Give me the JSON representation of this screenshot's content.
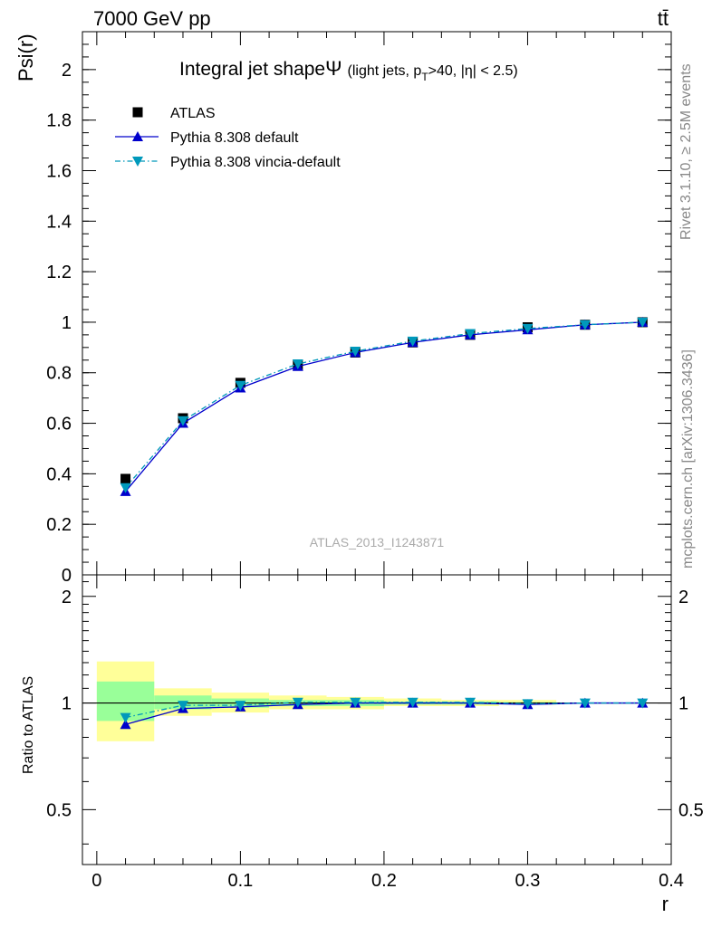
{
  "header": {
    "left": "7000 GeV pp",
    "right": "tt̄"
  },
  "side_text": {
    "upper": "Rivet 3.1.10, ≥ 2.5M events",
    "lower": "mcplots.cern.ch [arXiv:1306.3436]"
  },
  "watermark": "ATLAS_2013_I1243871",
  "chart_data": [
    {
      "type": "line",
      "title": "Integral jet shape",
      "title_symbol": "Ψ",
      "title_note": "(light jets, p",
      "title_note_sub": "T",
      "title_note_rest": ">40, |η| < 2.5)",
      "ylabel": "Psi(r)",
      "xlim": [
        -0.01,
        0.4
      ],
      "ylim": [
        0,
        2.15
      ],
      "yticks": [
        0,
        0.2,
        0.4,
        0.6,
        0.8,
        1,
        1.2,
        1.4,
        1.6,
        1.8,
        2
      ],
      "ytick_labels": [
        "0",
        "0.2",
        "0.4",
        "0.6",
        "0.8",
        "1",
        "1.2",
        "1.4",
        "1.6",
        "1.8",
        "2"
      ],
      "legend_position": "top-left",
      "x": [
        0.02,
        0.06,
        0.1,
        0.14,
        0.18,
        0.22,
        0.26,
        0.3,
        0.34,
        0.38
      ],
      "series": [
        {
          "name": "ATLAS",
          "color": "#000000",
          "marker": "square",
          "line": "none",
          "values": [
            0.38,
            0.62,
            0.76,
            0.83,
            0.88,
            0.92,
            0.95,
            0.98,
            0.99,
            1.0
          ]
        },
        {
          "name": "Pythia 8.308 default",
          "color": "#0000cc",
          "marker": "triangle-up",
          "line": "solid",
          "values": [
            0.33,
            0.6,
            0.74,
            0.825,
            0.88,
            0.92,
            0.95,
            0.97,
            0.99,
            1.0
          ]
        },
        {
          "name": "Pythia 8.308 vincia-default",
          "color": "#0099bb",
          "marker": "triangle-down",
          "line": "dashdot",
          "values": [
            0.345,
            0.61,
            0.75,
            0.835,
            0.885,
            0.925,
            0.955,
            0.975,
            0.99,
            1.0
          ]
        }
      ]
    },
    {
      "type": "line",
      "ylabel": "Ratio to ATLAS",
      "xlabel": "r",
      "xlim": [
        -0.01,
        0.4
      ],
      "ylim": [
        0.35,
        2.3
      ],
      "yticks": [
        0.5,
        1,
        2
      ],
      "ytick_labels": [
        "0.5",
        "1",
        "2"
      ],
      "xticks": [
        0,
        0.1,
        0.2,
        0.3,
        0.4
      ],
      "xtick_labels": [
        "0",
        "0.1",
        "0.2",
        "0.3",
        "0.4"
      ],
      "reference_line": 1.0,
      "bands": {
        "bin_edges": [
          0.0,
          0.04,
          0.08,
          0.12,
          0.16,
          0.2,
          0.24,
          0.28,
          0.32
        ],
        "outer_yellow": [
          [
            0.78,
            1.31
          ],
          [
            0.92,
            1.1
          ],
          [
            0.94,
            1.07
          ],
          [
            0.96,
            1.05
          ],
          [
            0.96,
            1.04
          ],
          [
            0.98,
            1.03
          ],
          [
            0.98,
            1.02
          ],
          [
            0.99,
            1.02
          ]
        ],
        "inner_green": [
          [
            0.89,
            1.15
          ],
          [
            0.96,
            1.05
          ],
          [
            0.97,
            1.03
          ],
          [
            0.98,
            1.02
          ],
          [
            0.98,
            1.02
          ],
          [
            0.99,
            1.01
          ],
          [
            0.99,
            1.01
          ],
          [
            0.995,
            1.005
          ]
        ],
        "colors": {
          "outer": "#ffff99",
          "inner": "#99ff99"
        }
      },
      "x": [
        0.02,
        0.06,
        0.1,
        0.14,
        0.18,
        0.22,
        0.26,
        0.3,
        0.34,
        0.38
      ],
      "series": [
        {
          "name": "Pythia 8.308 default",
          "color": "#0000cc",
          "marker": "triangle-up",
          "line": "solid",
          "values": [
            0.87,
            0.965,
            0.975,
            0.99,
            1.0,
            1.0,
            1.0,
            0.99,
            1.0,
            1.0
          ]
        },
        {
          "name": "Pythia 8.308 vincia-default",
          "color": "#0099bb",
          "marker": "triangle-down",
          "line": "dashdot",
          "values": [
            0.91,
            0.985,
            0.985,
            1.005,
            1.005,
            1.005,
            1.005,
            0.995,
            1.0,
            1.0
          ]
        }
      ]
    }
  ]
}
